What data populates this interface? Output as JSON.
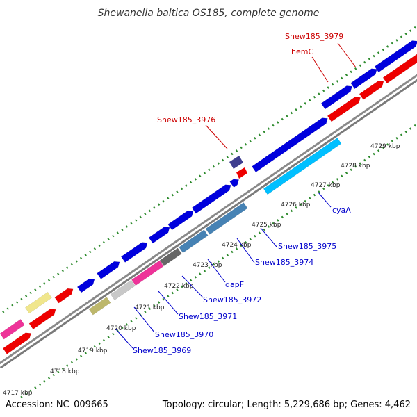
{
  "title": "Shewanella baltica OS185, complete genome",
  "footer": {
    "accession": "Accession: NC_009665",
    "topology": "Topology: circular; Length: 5,229,686 bp; Genes: 4,462"
  },
  "colors": {
    "backbone": "#6e6e6e",
    "tick": "#2e8b2e",
    "blue_gene": "#0000dd",
    "red_gene": "#ee0000",
    "label_red": "#cc0000",
    "label_blue": "#0000cc"
  },
  "ticks": [
    "4717 kbp",
    "4718 kbp",
    "4719 kbp",
    "4720 kbp",
    "4721 kbp",
    "4722 kbp",
    "4723 kbp",
    "4724 kbp",
    "4725 kbp",
    "4726 kbp",
    "4727 kbp",
    "4728 kbp",
    "4729 kbp"
  ],
  "gene_labels_top": [
    "Shew185_3979",
    "hemC",
    "Shew185_3976"
  ],
  "gene_labels_bottom": [
    "cyaA",
    "Shew185_3975",
    "Shew185_3974",
    "dapF",
    "Shew185_3972",
    "Shew185_3971",
    "Shew185_3970",
    "Shew185_3969"
  ]
}
